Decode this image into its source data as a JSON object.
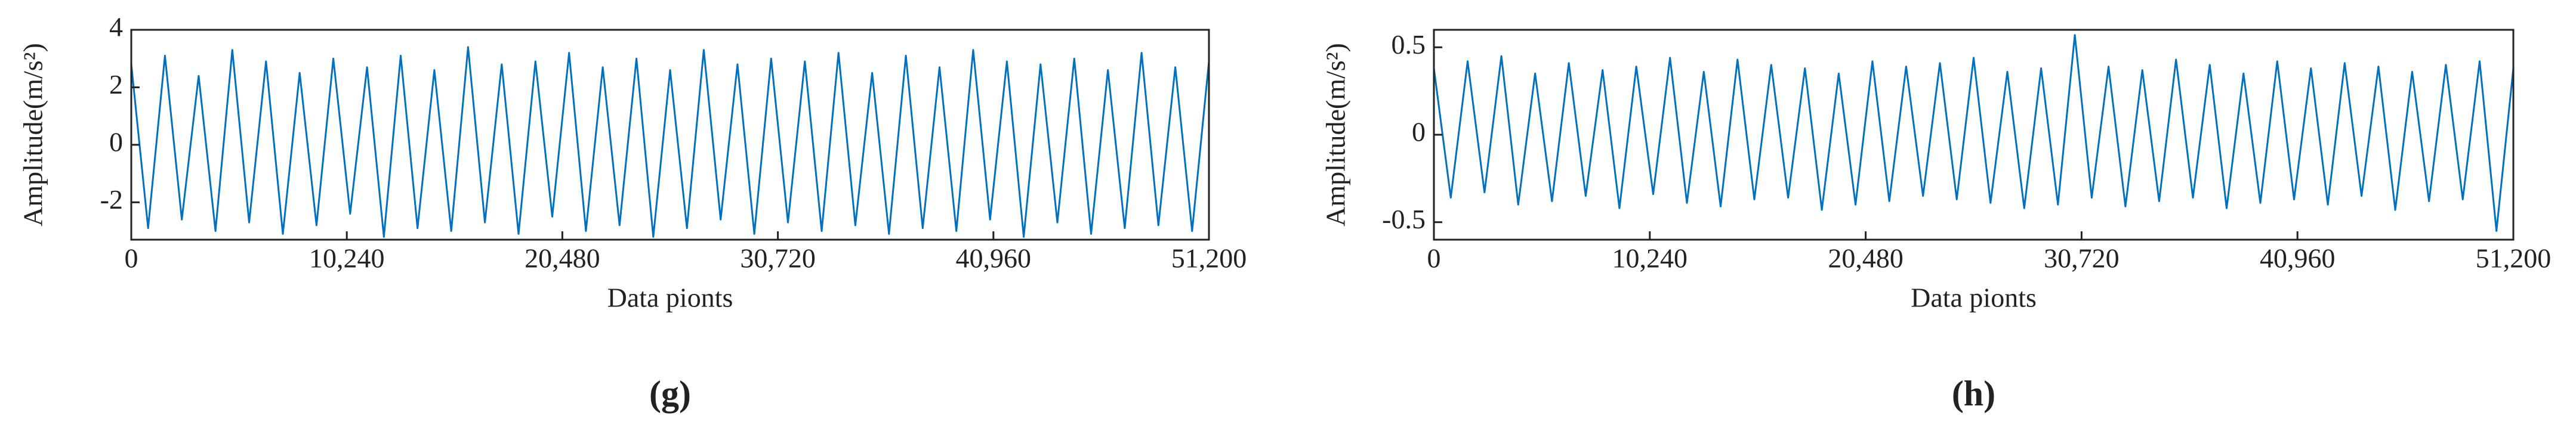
{
  "chart_data": [
    {
      "type": "line",
      "caption": "(g)",
      "ylabel": "Amplitude(m/s²)",
      "xlabel": "Data pionts",
      "xlim": [
        0,
        51200
      ],
      "xticks": [
        0,
        {
          "value": 10240,
          "label": "10,240"
        },
        {
          "value": 20480,
          "label": "20,480"
        },
        {
          "value": 30720,
          "label": "30,720"
        },
        {
          "value": 40960,
          "label": "40,960"
        },
        {
          "value": 51200,
          "label": "51,200"
        }
      ],
      "ylim": [
        -3.3,
        4
      ],
      "yticks": [
        -2,
        0,
        2,
        4
      ],
      "series": [
        {
          "color": "#0070c0",
          "x": [
            0,
            800,
            1600,
            2400,
            3200,
            4000,
            4800,
            5600,
            6400,
            7200,
            8000,
            8800,
            9600,
            10400,
            11200,
            12000,
            12800,
            13600,
            14400,
            15200,
            16000,
            16800,
            17600,
            18400,
            19200,
            20000,
            20800,
            21600,
            22400,
            23200,
            24000,
            24800,
            25600,
            26400,
            27200,
            28000,
            28800,
            29600,
            30400,
            31200,
            32000,
            32800,
            33600,
            34400,
            35200,
            36000,
            36800,
            37600,
            38400,
            39200,
            40000,
            40800,
            41600,
            42400,
            43200,
            44000,
            44800,
            45600,
            46400,
            47200,
            48000,
            48800,
            49600,
            50400,
            51200
          ],
          "values": [
            2.8,
            -2.9,
            3.1,
            -2.6,
            2.4,
            -3.0,
            3.3,
            -2.7,
            2.9,
            -3.1,
            2.5,
            -2.8,
            3.0,
            -2.4,
            2.7,
            -3.2,
            3.1,
            -2.9,
            2.6,
            -3.0,
            3.4,
            -2.7,
            2.8,
            -3.1,
            2.9,
            -2.5,
            3.2,
            -3.0,
            2.7,
            -2.8,
            3.0,
            -3.2,
            2.6,
            -2.9,
            3.3,
            -2.6,
            2.8,
            -3.1,
            3.0,
            -2.7,
            2.9,
            -3.0,
            3.2,
            -2.8,
            2.5,
            -3.1,
            3.1,
            -2.9,
            2.7,
            -3.0,
            3.3,
            -2.6,
            2.9,
            -3.2,
            2.8,
            -2.7,
            3.0,
            -3.1,
            2.6,
            -2.9,
            3.2,
            -2.8,
            2.7,
            -3.0,
            2.9
          ]
        }
      ]
    },
    {
      "type": "line",
      "caption": "(h)",
      "ylabel": "Amplitude(m/s²)",
      "xlabel": "Data pionts",
      "xlim": [
        0,
        51200
      ],
      "xticks": [
        0,
        {
          "value": 10240,
          "label": "10,240"
        },
        {
          "value": 20480,
          "label": "20,480"
        },
        {
          "value": 30720,
          "label": "30,720"
        },
        {
          "value": 40960,
          "label": "40,960"
        },
        {
          "value": 51200,
          "label": "51,200"
        }
      ],
      "ylim": [
        -0.6,
        0.6
      ],
      "yticks": [
        -0.5,
        0,
        0.5
      ],
      "series": [
        {
          "color": "#0070c0",
          "x": [
            0,
            800,
            1600,
            2400,
            3200,
            4000,
            4800,
            5600,
            6400,
            7200,
            8000,
            8800,
            9600,
            10400,
            11200,
            12000,
            12800,
            13600,
            14400,
            15200,
            16000,
            16800,
            17600,
            18400,
            19200,
            20000,
            20800,
            21600,
            22400,
            23200,
            24000,
            24800,
            25600,
            26400,
            27200,
            28000,
            28800,
            29600,
            30400,
            31200,
            32000,
            32800,
            33600,
            34400,
            35200,
            36000,
            36800,
            37600,
            38400,
            39200,
            40000,
            40800,
            41600,
            42400,
            43200,
            44000,
            44800,
            45600,
            46400,
            47200,
            48000,
            48800,
            49600,
            50400,
            51200
          ],
          "values": [
            0.38,
            -0.36,
            0.42,
            -0.33,
            0.45,
            -0.4,
            0.35,
            -0.38,
            0.41,
            -0.35,
            0.37,
            -0.42,
            0.39,
            -0.34,
            0.44,
            -0.39,
            0.36,
            -0.41,
            0.43,
            -0.37,
            0.4,
            -0.36,
            0.38,
            -0.43,
            0.35,
            -0.4,
            0.42,
            -0.38,
            0.39,
            -0.35,
            0.41,
            -0.37,
            0.44,
            -0.39,
            0.36,
            -0.42,
            0.38,
            -0.4,
            0.57,
            -0.36,
            0.39,
            -0.41,
            0.37,
            -0.38,
            0.43,
            -0.36,
            0.4,
            -0.42,
            0.35,
            -0.39,
            0.42,
            -0.37,
            0.38,
            -0.4,
            0.41,
            -0.35,
            0.39,
            -0.43,
            0.36,
            -0.38,
            0.4,
            -0.37,
            0.42,
            -0.55,
            0.38
          ]
        }
      ]
    }
  ]
}
